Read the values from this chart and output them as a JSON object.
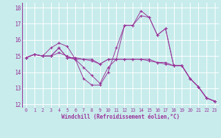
{
  "xlabel": "Windchill (Refroidissement éolien,°C)",
  "background_color": "#c8ecec",
  "grid_color": "#ffffff",
  "line_color": "#993399",
  "xlim": [
    -0.5,
    23.5
  ],
  "ylim": [
    11.8,
    18.3
  ],
  "yticks": [
    12,
    13,
    14,
    15,
    16,
    17,
    18
  ],
  "xticks": [
    0,
    1,
    2,
    3,
    4,
    5,
    6,
    7,
    8,
    9,
    10,
    11,
    12,
    13,
    14,
    15,
    16,
    17,
    18,
    19,
    20,
    21,
    22,
    23
  ],
  "series": [
    [
      14.9,
      15.1,
      15.0,
      15.5,
      15.8,
      15.6,
      14.8,
      13.6,
      13.2,
      13.2,
      14.0,
      15.5,
      16.9,
      16.9,
      17.8,
      17.4,
      16.3,
      16.7,
      14.4,
      14.4,
      13.6,
      13.1,
      12.4,
      12.2
    ],
    [
      14.9,
      15.1,
      15.0,
      15.0,
      15.5,
      14.9,
      14.9,
      14.8,
      14.8,
      14.5,
      14.8,
      14.8,
      14.8,
      14.8,
      14.8,
      14.8,
      14.6,
      14.6,
      14.4,
      14.4,
      13.6,
      13.1,
      12.4,
      12.2
    ],
    [
      14.9,
      15.1,
      15.0,
      15.0,
      15.2,
      15.0,
      14.8,
      14.8,
      14.7,
      14.5,
      14.8,
      14.8,
      14.8,
      14.8,
      14.8,
      14.7,
      14.6,
      14.5,
      14.4,
      14.4,
      13.6,
      13.1,
      12.4,
      12.2
    ],
    [
      14.9,
      15.1,
      15.0,
      15.0,
      15.5,
      14.9,
      14.8,
      14.3,
      13.8,
      13.3,
      14.3,
      14.8,
      16.9,
      16.9,
      17.5,
      17.4,
      16.3,
      16.7,
      14.4,
      14.4,
      13.6,
      13.1,
      12.4,
      12.2
    ]
  ]
}
